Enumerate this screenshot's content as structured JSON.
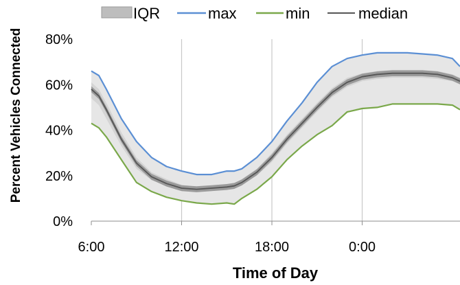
{
  "chart_data": {
    "type": "line",
    "xlabel": "Time of Day",
    "ylabel": "Percent  Vehicles Connected",
    "x_tick_labels": [
      "6:00",
      "12:00",
      "18:00",
      "0:00"
    ],
    "x_ticks_hours": [
      6,
      12,
      18,
      24
    ],
    "xlim_hours": [
      6,
      30.5
    ],
    "y_tick_labels": [
      "0%",
      "20%",
      "40%",
      "60%",
      "80%"
    ],
    "y_ticks": [
      0,
      20,
      40,
      60,
      80
    ],
    "ylim": [
      0,
      80
    ],
    "grid": "vertical",
    "legend_position": "top",
    "x_hours": [
      6,
      6.5,
      7,
      8,
      9,
      10,
      11,
      12,
      13,
      14,
      15,
      15.5,
      16,
      17,
      18,
      19,
      20,
      21,
      22,
      23,
      24,
      25,
      26,
      27,
      28,
      29,
      30,
      30.5
    ],
    "band": {
      "name": "IQR",
      "color": "#d4d4d4",
      "lower": [
        54,
        51,
        45,
        33,
        23,
        18,
        15.5,
        13.5,
        13,
        13.5,
        14,
        14.5,
        16,
        20,
        26,
        34,
        41,
        48,
        54.5,
        59,
        61.5,
        62.5,
        63,
        63,
        63,
        62.5,
        61.5,
        60
      ],
      "upper": [
        61,
        58,
        52,
        39,
        28,
        21.5,
        18.5,
        16,
        15,
        15.5,
        16,
        16.5,
        18.5,
        23,
        30,
        38,
        45,
        52,
        58.5,
        63,
        65,
        66,
        66.5,
        66.5,
        66.5,
        66,
        64.5,
        63
      ]
    },
    "series": [
      {
        "name": "max",
        "color": "#5b8fd4",
        "values": [
          66,
          64,
          58,
          45,
          35,
          28,
          24,
          22,
          20.5,
          20.5,
          22,
          22,
          23,
          28,
          35,
          44,
          52,
          61,
          68,
          71.5,
          73,
          74,
          74,
          74,
          73.5,
          73,
          71.5,
          68
        ]
      },
      {
        "name": "min",
        "color": "#7aa84a",
        "values": [
          43,
          41,
          37,
          27,
          17,
          13,
          10.5,
          9,
          8,
          7.5,
          8,
          7.5,
          10,
          14,
          19.5,
          27,
          33,
          38,
          42,
          48,
          49.5,
          50,
          51.5,
          51.5,
          51.5,
          51.5,
          51,
          49
        ]
      },
      {
        "name": "median",
        "color": "#555555",
        "values": [
          58,
          55,
          49,
          36,
          25.5,
          19.5,
          16.5,
          14.5,
          14,
          14.5,
          15,
          15.5,
          17,
          21.5,
          28,
          36,
          43,
          50,
          56.5,
          61,
          63.5,
          64.5,
          65,
          65,
          65,
          64.5,
          63,
          61.5
        ]
      }
    ]
  }
}
